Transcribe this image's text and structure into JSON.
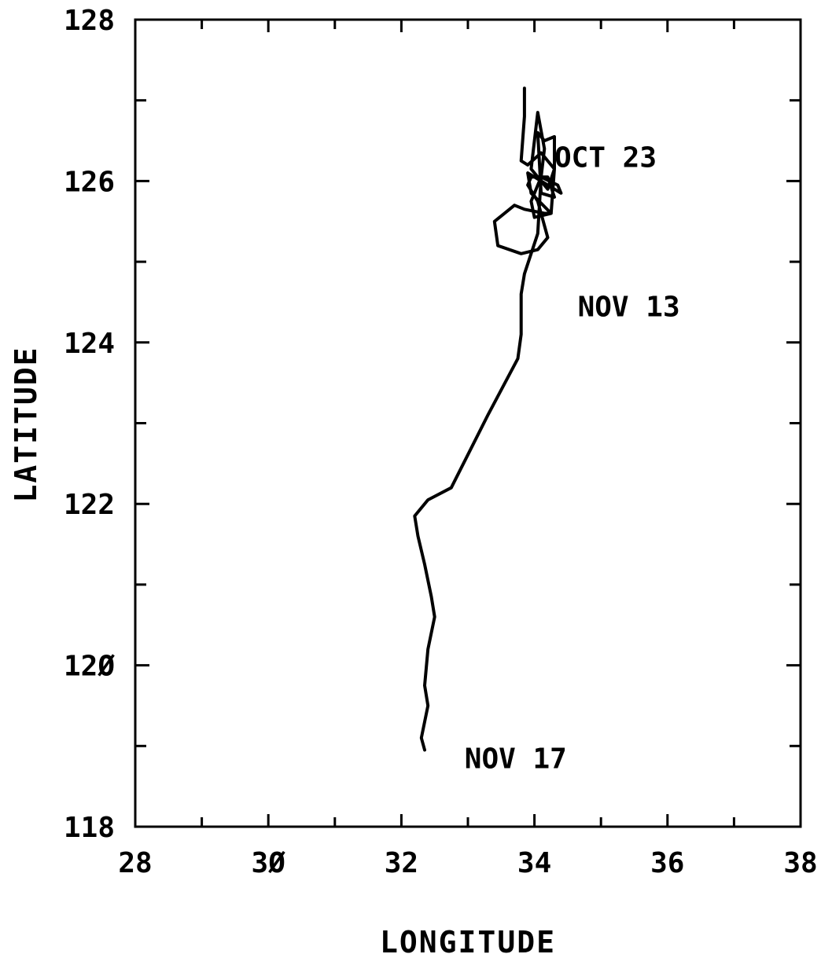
{
  "chart_data": {
    "type": "line",
    "title": "",
    "xlabel": "LONGITUDE",
    "ylabel": "LATITUDE",
    "xlim": [
      28,
      38
    ],
    "ylim": [
      118,
      128
    ],
    "x_major_ticks": [
      28,
      30,
      32,
      34,
      36,
      38
    ],
    "x_tick_labels": [
      "28",
      "3Ø",
      "32",
      "34",
      "36",
      "38"
    ],
    "y_major_ticks": [
      118,
      120,
      122,
      124,
      126,
      128
    ],
    "y_tick_labels": [
      "118",
      "12Ø",
      "122",
      "124",
      "126",
      "128"
    ],
    "grid": false,
    "legend": "none",
    "line_color": "#000000",
    "series": [
      {
        "x": [
          33.85,
          33.85,
          33.8,
          33.9,
          34.1,
          34.3,
          34.25,
          34.0,
          33.95,
          34.1,
          34.35,
          34.4,
          34.2,
          33.9,
          33.95,
          34.25,
          34.15,
          33.85,
          33.7,
          33.4,
          33.45,
          33.8,
          34.05,
          34.2,
          34.05,
          33.9,
          33.95,
          34.2,
          34.3,
          34.1,
          34.05,
          34.15,
          34.3,
          34.3,
          34.2,
          33.95,
          34.05,
          34.15,
          34.1,
          34.05,
          33.85,
          33.8,
          33.8,
          33.75,
          33.3,
          32.75,
          32.4,
          32.2,
          32.25,
          32.35,
          32.45,
          32.5,
          32.4,
          32.35,
          32.4,
          32.35,
          32.3,
          32.35
        ],
        "y": [
          127.15,
          126.8,
          126.25,
          126.2,
          126.35,
          126.15,
          125.6,
          125.55,
          125.75,
          126.05,
          125.95,
          125.85,
          125.95,
          126.1,
          125.85,
          125.6,
          125.6,
          125.65,
          125.7,
          125.5,
          125.2,
          125.1,
          125.15,
          125.3,
          125.75,
          125.95,
          126.05,
          126.05,
          125.8,
          125.85,
          126.6,
          126.5,
          126.55,
          126.15,
          125.9,
          126.15,
          126.85,
          126.4,
          126.05,
          125.35,
          124.85,
          124.6,
          124.1,
          123.8,
          123.1,
          122.2,
          122.05,
          121.85,
          121.6,
          121.25,
          120.85,
          120.6,
          120.2,
          119.75,
          119.5,
          119.3,
          119.1,
          118.95
        ]
      }
    ],
    "annotations": [
      {
        "text": "OCT 23",
        "x": 34.3,
        "y": 126.3
      },
      {
        "text": "NOV 13",
        "x": 34.65,
        "y": 124.45
      },
      {
        "text": "NOV 17",
        "x": 32.95,
        "y": 118.85
      }
    ]
  }
}
